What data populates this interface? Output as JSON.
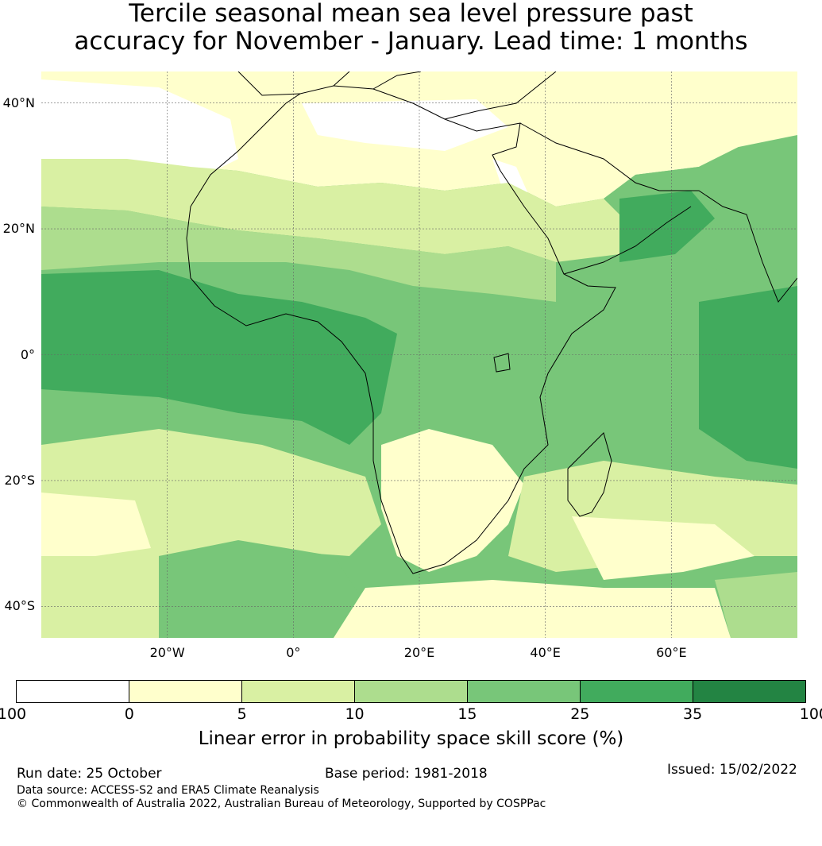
{
  "title": {
    "line1": "Tercile seasonal mean sea level pressure past",
    "line2": "accuracy for November - January. Lead time: 1 months"
  },
  "map": {
    "lat_ticks": [
      {
        "value": 40,
        "label": "40°N"
      },
      {
        "value": 20,
        "label": "20°N"
      },
      {
        "value": 0,
        "label": "0°"
      },
      {
        "value": -20,
        "label": "20°S"
      },
      {
        "value": -40,
        "label": "40°S"
      }
    ],
    "lon_ticks": [
      {
        "value": -20,
        "label": "20°W"
      },
      {
        "value": 0,
        "label": "0°"
      },
      {
        "value": 20,
        "label": "20°E"
      },
      {
        "value": 40,
        "label": "40°E"
      },
      {
        "value": 60,
        "label": "60°E"
      }
    ],
    "lat_range": [
      -45,
      45
    ],
    "lon_range": [
      -40,
      80
    ],
    "gridlines": true
  },
  "colorbar": {
    "ticks": [
      "-100",
      "0",
      "5",
      "10",
      "15",
      "25",
      "35",
      "100"
    ],
    "colors": [
      "#ffffff",
      "#ffffcc",
      "#d9f0a3",
      "#addd8e",
      "#78c679",
      "#41ab5d",
      "#238443"
    ],
    "label": "Linear error in probability space skill score (%)"
  },
  "footer": {
    "run_date": "Run date: 25 October",
    "base_period": "Base period: 1981-2018",
    "issued": "Issued: 15/02/2022",
    "data_source": "Data source: ACCESS-S2 and ERA5 Climate Reanalysis",
    "copyright": "© Commonwealth of Australia 2022, Australian Bureau of Meteorology, Supported by COSPPac"
  }
}
